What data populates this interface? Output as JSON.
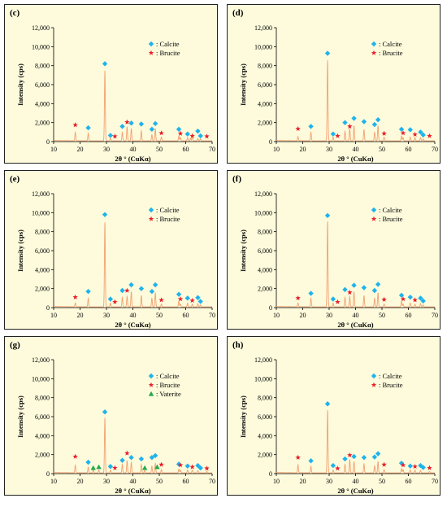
{
  "colors": {
    "panel_bg": "#fdfbdc",
    "trace": "#f2a170",
    "calcite": "#1fb3ec",
    "brucite": "#e8202a",
    "vaterite": "#23a84a"
  },
  "legend_labels": {
    "calcite": ": Calcite",
    "brucite": ": Brucite",
    "vaterite": ": Vaterite"
  },
  "chart_data": [
    {
      "panel": "(c)",
      "type": "line",
      "xlabel": "2θ ° (CuKα)",
      "ylabel": "Intensity (cps)",
      "xlim": [
        10,
        70
      ],
      "ylim": [
        0,
        12000
      ],
      "xticks": [
        10,
        20,
        30,
        40,
        50,
        60,
        70
      ],
      "yticks": [
        "0",
        "2,000",
        "4,000",
        "6,000",
        "8,000",
        "10,000",
        "12,000"
      ],
      "legend_placement": "top-right",
      "legend": [
        "calcite",
        "brucite"
      ],
      "peaks": [
        [
          18.2,
          900
        ],
        [
          23.1,
          800
        ],
        [
          29.4,
          7400
        ],
        [
          31.5,
          300
        ],
        [
          36.0,
          900
        ],
        [
          37.8,
          1500
        ],
        [
          39.4,
          1300
        ],
        [
          43.2,
          1050
        ],
        [
          47.2,
          650
        ],
        [
          48.5,
          1300
        ],
        [
          50.8,
          400
        ],
        [
          57.4,
          500
        ],
        [
          58.0,
          350
        ],
        [
          60.7,
          350
        ],
        [
          61.8,
          250
        ],
        [
          62.5,
          500
        ],
        [
          64.6,
          250
        ],
        [
          65.6,
          200
        ]
      ],
      "calcite": [
        [
          23.1,
          1450
        ],
        [
          29.4,
          8200
        ],
        [
          31.5,
          650
        ],
        [
          36.0,
          1600
        ],
        [
          39.4,
          1950
        ],
        [
          43.2,
          1850
        ],
        [
          47.2,
          1300
        ],
        [
          48.5,
          1900
        ],
        [
          57.4,
          1300
        ],
        [
          60.7,
          800
        ],
        [
          64.6,
          1100
        ],
        [
          65.6,
          600
        ]
      ],
      "brucite": [
        [
          18.2,
          1750
        ],
        [
          33.2,
          550
        ],
        [
          37.8,
          2050
        ],
        [
          50.8,
          900
        ],
        [
          58.0,
          850
        ],
        [
          62.5,
          600
        ],
        [
          68.0,
          550
        ]
      ],
      "vaterite": []
    },
    {
      "panel": "(d)",
      "type": "line",
      "xlabel": "2θ ° (CuKα)",
      "ylabel": "Intensity (cps)",
      "xlim": [
        10,
        70
      ],
      "ylim": [
        0,
        12000
      ],
      "xticks": [
        10,
        20,
        30,
        40,
        50,
        60,
        70
      ],
      "yticks": [
        "0",
        "2,000",
        "4,000",
        "6,000",
        "8,000",
        "10,000",
        "12,000"
      ],
      "legend_placement": "top-right",
      "legend": [
        "calcite",
        "brucite"
      ],
      "peaks": [
        [
          18.2,
          450
        ],
        [
          23.1,
          900
        ],
        [
          29.4,
          8500
        ],
        [
          31.5,
          400
        ],
        [
          36.0,
          1000
        ],
        [
          37.8,
          1300
        ],
        [
          39.4,
          1600
        ],
        [
          43.2,
          1200
        ],
        [
          47.2,
          900
        ],
        [
          48.5,
          1600
        ],
        [
          50.8,
          400
        ],
        [
          57.4,
          500
        ],
        [
          58.0,
          350
        ],
        [
          60.7,
          400
        ],
        [
          62.5,
          350
        ],
        [
          64.6,
          350
        ],
        [
          65.6,
          200
        ]
      ],
      "calcite": [
        [
          23.1,
          1600
        ],
        [
          29.4,
          9300
        ],
        [
          31.5,
          800
        ],
        [
          36.0,
          2000
        ],
        [
          39.4,
          2450
        ],
        [
          43.2,
          2100
        ],
        [
          47.2,
          1800
        ],
        [
          48.5,
          2300
        ],
        [
          57.4,
          1300
        ],
        [
          60.7,
          1250
        ],
        [
          64.6,
          1000
        ],
        [
          65.6,
          700
        ]
      ],
      "brucite": [
        [
          18.2,
          1350
        ],
        [
          33.2,
          600
        ],
        [
          37.8,
          1600
        ],
        [
          50.8,
          850
        ],
        [
          58.0,
          900
        ],
        [
          62.5,
          750
        ],
        [
          68.0,
          600
        ]
      ],
      "vaterite": []
    },
    {
      "panel": "(e)",
      "type": "line",
      "xlabel": "2θ ° (CuKα)",
      "ylabel": "Intensity (cps)",
      "xlim": [
        10,
        70
      ],
      "ylim": [
        0,
        12000
      ],
      "xticks": [
        10,
        20,
        30,
        40,
        50,
        60,
        70
      ],
      "yticks": [
        "0",
        "2,000",
        "4,000",
        "6,000",
        "8,000",
        "10,000",
        "12,000"
      ],
      "legend_placement": "top-right",
      "legend": [
        "calcite",
        "brucite"
      ],
      "peaks": [
        [
          18.2,
          400
        ],
        [
          23.1,
          900
        ],
        [
          29.4,
          8900
        ],
        [
          31.5,
          400
        ],
        [
          36.0,
          1000
        ],
        [
          37.8,
          1100
        ],
        [
          39.4,
          1600
        ],
        [
          43.2,
          1200
        ],
        [
          47.2,
          900
        ],
        [
          48.5,
          1500
        ],
        [
          50.8,
          300
        ],
        [
          57.4,
          600
        ],
        [
          58.0,
          300
        ],
        [
          60.7,
          400
        ],
        [
          62.5,
          300
        ],
        [
          64.6,
          350
        ],
        [
          65.6,
          200
        ]
      ],
      "calcite": [
        [
          23.1,
          1700
        ],
        [
          29.4,
          9800
        ],
        [
          31.5,
          900
        ],
        [
          36.0,
          1800
        ],
        [
          39.4,
          2400
        ],
        [
          43.2,
          2000
        ],
        [
          47.2,
          1700
        ],
        [
          48.5,
          2400
        ],
        [
          57.4,
          1400
        ],
        [
          60.7,
          1000
        ],
        [
          64.6,
          1050
        ],
        [
          65.6,
          650
        ]
      ],
      "brucite": [
        [
          18.2,
          1100
        ],
        [
          33.2,
          600
        ],
        [
          37.8,
          1800
        ],
        [
          50.8,
          800
        ],
        [
          58.0,
          900
        ],
        [
          62.5,
          750
        ]
      ],
      "vaterite": []
    },
    {
      "panel": "(f)",
      "type": "line",
      "xlabel": "2θ ° (CuKα)",
      "ylabel": "Intensity (cps)",
      "xlim": [
        10,
        70
      ],
      "ylim": [
        0,
        12000
      ],
      "xticks": [
        10,
        20,
        30,
        40,
        50,
        60,
        70
      ],
      "yticks": [
        "0",
        "2,000",
        "4,000",
        "6,000",
        "8,000",
        "10,000",
        "12,000"
      ],
      "legend_placement": "top-right",
      "legend": [
        "calcite",
        "brucite"
      ],
      "peaks": [
        [
          18.2,
          400
        ],
        [
          23.1,
          900
        ],
        [
          29.4,
          9000
        ],
        [
          31.5,
          400
        ],
        [
          36.0,
          1000
        ],
        [
          37.8,
          1100
        ],
        [
          39.4,
          1600
        ],
        [
          43.2,
          1200
        ],
        [
          47.2,
          900
        ],
        [
          48.5,
          1500
        ],
        [
          50.8,
          300
        ],
        [
          57.4,
          600
        ],
        [
          58.0,
          300
        ],
        [
          60.7,
          400
        ],
        [
          62.5,
          300
        ],
        [
          64.6,
          350
        ],
        [
          65.6,
          200
        ]
      ],
      "calcite": [
        [
          23.1,
          1500
        ],
        [
          29.4,
          9700
        ],
        [
          31.5,
          900
        ],
        [
          36.0,
          1900
        ],
        [
          39.4,
          2350
        ],
        [
          43.2,
          2100
        ],
        [
          47.2,
          1800
        ],
        [
          48.5,
          2450
        ],
        [
          57.4,
          1300
        ],
        [
          60.7,
          1100
        ],
        [
          64.6,
          1000
        ],
        [
          65.6,
          700
        ]
      ],
      "brucite": [
        [
          18.2,
          1000
        ],
        [
          33.2,
          600
        ],
        [
          37.8,
          1600
        ],
        [
          50.8,
          850
        ],
        [
          58.0,
          900
        ],
        [
          62.5,
          800
        ]
      ],
      "vaterite": []
    },
    {
      "panel": "(g)",
      "type": "line",
      "xlabel": "2θ ° (CuKα)",
      "ylabel": "Intensity (cps)",
      "xlim": [
        10,
        70
      ],
      "ylim": [
        0,
        12000
      ],
      "xticks": [
        10,
        20,
        30,
        40,
        50,
        60,
        70
      ],
      "yticks": [
        "0",
        "2,000",
        "4,000",
        "6,000",
        "8,000",
        "10,000",
        "12,000"
      ],
      "legend_placement": "top-right",
      "legend": [
        "calcite",
        "brucite",
        "vaterite"
      ],
      "peaks": [
        [
          18.2,
          800
        ],
        [
          23.1,
          600
        ],
        [
          25.0,
          300
        ],
        [
          27.1,
          300
        ],
        [
          29.4,
          5800
        ],
        [
          31.5,
          300
        ],
        [
          36.0,
          900
        ],
        [
          37.8,
          1300
        ],
        [
          39.4,
          1100
        ],
        [
          43.2,
          900
        ],
        [
          44.5,
          250
        ],
        [
          47.2,
          700
        ],
        [
          48.5,
          1000
        ],
        [
          50.8,
          350
        ],
        [
          57.4,
          400
        ],
        [
          58.0,
          300
        ],
        [
          60.7,
          300
        ],
        [
          62.5,
          300
        ],
        [
          64.6,
          250
        ],
        [
          68.0,
          150
        ]
      ],
      "calcite": [
        [
          23.1,
          1200
        ],
        [
          29.4,
          6500
        ],
        [
          31.5,
          750
        ],
        [
          36.0,
          1400
        ],
        [
          39.4,
          1700
        ],
        [
          43.2,
          1550
        ],
        [
          47.2,
          1700
        ],
        [
          48.5,
          1900
        ],
        [
          57.4,
          1000
        ],
        [
          60.7,
          800
        ],
        [
          64.6,
          850
        ],
        [
          65.6,
          600
        ]
      ],
      "brucite": [
        [
          18.2,
          1800
        ],
        [
          33.2,
          600
        ],
        [
          37.8,
          2150
        ],
        [
          50.8,
          950
        ],
        [
          58.0,
          900
        ],
        [
          62.5,
          700
        ],
        [
          68.0,
          550
        ]
      ],
      "vaterite": [
        [
          25.0,
          600
        ],
        [
          27.1,
          700
        ],
        [
          44.5,
          600
        ],
        [
          49.2,
          700
        ]
      ]
    },
    {
      "panel": "(h)",
      "type": "line",
      "xlabel": "2θ ° (CuKα)",
      "ylabel": "Intensity (cps)",
      "xlim": [
        10,
        70
      ],
      "ylim": [
        0,
        12000
      ],
      "xticks": [
        10,
        20,
        30,
        40,
        50,
        60,
        70
      ],
      "yticks": [
        "0",
        "2,000",
        "4,000",
        "6,000",
        "8,000",
        "10,000",
        "12,000"
      ],
      "legend_placement": "top-right",
      "legend": [
        "calcite",
        "brucite"
      ],
      "peaks": [
        [
          18.2,
          850
        ],
        [
          23.1,
          700
        ],
        [
          29.4,
          6600
        ],
        [
          31.5,
          300
        ],
        [
          36.0,
          900
        ],
        [
          37.8,
          1400
        ],
        [
          39.4,
          1200
        ],
        [
          43.2,
          950
        ],
        [
          47.2,
          750
        ],
        [
          48.5,
          1200
        ],
        [
          50.8,
          350
        ],
        [
          57.4,
          450
        ],
        [
          58.0,
          350
        ],
        [
          60.7,
          300
        ],
        [
          62.5,
          300
        ],
        [
          64.6,
          250
        ],
        [
          68.0,
          150
        ]
      ],
      "calcite": [
        [
          23.1,
          1350
        ],
        [
          29.4,
          7350
        ],
        [
          31.5,
          850
        ],
        [
          36.0,
          1550
        ],
        [
          39.4,
          1800
        ],
        [
          43.2,
          1700
        ],
        [
          47.2,
          1750
        ],
        [
          48.5,
          2100
        ],
        [
          57.4,
          1100
        ],
        [
          60.7,
          800
        ],
        [
          64.6,
          850
        ],
        [
          65.6,
          650
        ]
      ],
      "brucite": [
        [
          18.2,
          1700
        ],
        [
          33.2,
          550
        ],
        [
          37.8,
          1950
        ],
        [
          50.8,
          950
        ],
        [
          58.0,
          900
        ],
        [
          62.5,
          750
        ],
        [
          68.0,
          600
        ]
      ],
      "vaterite": []
    }
  ]
}
